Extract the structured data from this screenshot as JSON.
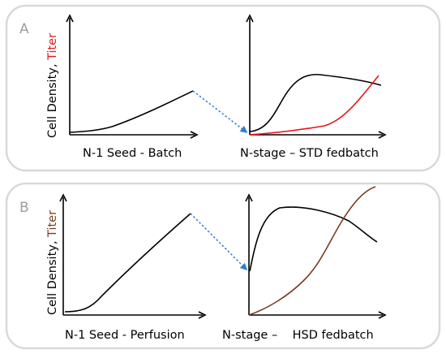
{
  "panels": [
    {
      "letter": "A",
      "ylabel_cell": "Cell Density, ",
      "ylabel_titer": "Titer",
      "left_xlabel": "N-1 Seed - Batch",
      "right_xlabel": "N-stage – STD fedbatch"
    },
    {
      "letter": "B",
      "ylabel_cell": "Cell Density, ",
      "ylabel_titer": "Titer",
      "left_xlabel": "N-1 Seed - Perfusion",
      "right_xlabel": "N-stage –    HSD fedbatch"
    }
  ],
  "colors": {
    "cell_density_curve": "#000000",
    "titer_a": "#e8141b",
    "titer_b": "#7a3b1e",
    "transfer_arrow": "#2f7fd6"
  }
}
